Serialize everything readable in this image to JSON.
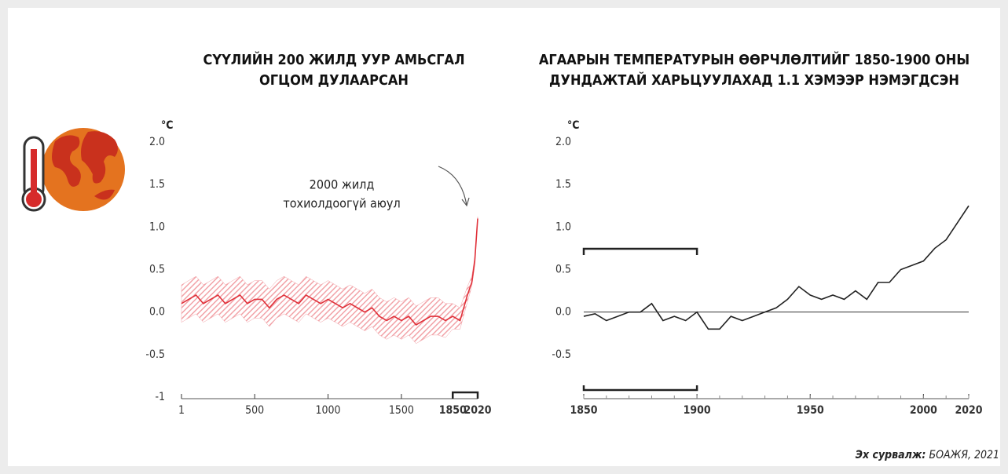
{
  "chart_data": [
    {
      "type": "line",
      "title": [
        "СҮҮЛИЙН 200 ЖИЛД УУР АМЬСГАЛ",
        "ОГЦОМ ДУЛААРСАН"
      ],
      "y_label": "°C",
      "annotation": [
        "2000 жилд",
        "тохиолдоогүй аюул"
      ],
      "x": [
        1,
        50,
        100,
        150,
        200,
        250,
        300,
        350,
        400,
        450,
        500,
        550,
        600,
        650,
        700,
        750,
        800,
        850,
        900,
        950,
        1000,
        1050,
        1100,
        1150,
        1200,
        1250,
        1300,
        1350,
        1400,
        1450,
        1500,
        1550,
        1600,
        1650,
        1700,
        1750,
        1800,
        1850,
        1900,
        1950,
        1980,
        2000,
        2010,
        2020
      ],
      "values": [
        0.1,
        0.15,
        0.2,
        0.1,
        0.15,
        0.2,
        0.1,
        0.15,
        0.2,
        0.1,
        0.15,
        0.15,
        0.05,
        0.15,
        0.2,
        0.15,
        0.1,
        0.2,
        0.15,
        0.1,
        0.15,
        0.1,
        0.05,
        0.1,
        0.05,
        0,
        0.05,
        -0.05,
        -0.1,
        -0.05,
        -0.1,
        -0.05,
        -0.15,
        -0.1,
        -0.05,
        -0.05,
        -0.1,
        -0.05,
        -0.1,
        0.2,
        0.35,
        0.6,
        0.85,
        1.1
      ],
      "band_low": [
        -0.12,
        -0.07,
        -0.02,
        -0.12,
        -0.07,
        -0.02,
        -0.12,
        -0.07,
        -0.02,
        -0.12,
        -0.07,
        -0.07,
        -0.17,
        -0.07,
        -0.02,
        -0.07,
        -0.12,
        -0.02,
        -0.07,
        -0.12,
        -0.07,
        -0.12,
        -0.17,
        -0.12,
        -0.17,
        -0.22,
        -0.17,
        -0.27,
        -0.32,
        -0.27,
        -0.32,
        -0.27,
        -0.37,
        -0.32,
        -0.27,
        -0.27,
        -0.3,
        -0.2,
        -0.2,
        0.12,
        0.3,
        0.55,
        0.82,
        1.08
      ],
      "band_high": [
        0.32,
        0.37,
        0.42,
        0.32,
        0.37,
        0.42,
        0.32,
        0.37,
        0.42,
        0.32,
        0.37,
        0.37,
        0.27,
        0.37,
        0.42,
        0.37,
        0.32,
        0.42,
        0.37,
        0.32,
        0.37,
        0.32,
        0.27,
        0.32,
        0.27,
        0.22,
        0.27,
        0.17,
        0.12,
        0.17,
        0.12,
        0.17,
        0.07,
        0.12,
        0.17,
        0.17,
        0.1,
        0.1,
        0.05,
        0.3,
        0.42,
        0.65,
        0.88,
        1.12
      ],
      "color": "#e0313a",
      "band_color": "#f2a3a8",
      "xlim": [
        1,
        2020
      ],
      "xticks": [
        1,
        500,
        1000,
        1500,
        1850,
        2020
      ],
      "highlight_range": [
        1850,
        2020
      ],
      "ylim": [
        -1,
        2
      ],
      "yticks": [
        {
          "value": 2,
          "label": "2.0"
        },
        1.5,
        {
          "value": 1,
          "label": "1.0"
        },
        0.5,
        {
          "value": 0,
          "label": "0.0"
        },
        -0.5,
        -1
      ]
    },
    {
      "type": "line",
      "title": [
        "АГААРЫН ТЕМПЕРАТУРЫН ӨӨРЧЛӨЛТИЙГ 1850-1900 ОНЫ",
        "ДУНДАЖТАЙ ХАРЬЦУУЛАХАД 1.1 ХЭМЭЭР НЭМЭГДСЭН"
      ],
      "y_label": "°C",
      "x": [
        1850,
        1855,
        1860,
        1865,
        1870,
        1875,
        1880,
        1885,
        1890,
        1895,
        1900,
        1905,
        1910,
        1915,
        1920,
        1925,
        1930,
        1935,
        1940,
        1945,
        1950,
        1955,
        1960,
        1965,
        1970,
        1975,
        1980,
        1985,
        1990,
        1995,
        2000,
        2005,
        2010,
        2015,
        2020
      ],
      "values": [
        -0.05,
        -0.02,
        -0.1,
        -0.05,
        0,
        0,
        0.1,
        -0.1,
        -0.05,
        -0.1,
        0,
        -0.2,
        -0.2,
        -0.05,
        -0.1,
        -0.05,
        0,
        0.05,
        0.15,
        0.3,
        0.2,
        0.15,
        0.2,
        0.15,
        0.25,
        0.15,
        0.35,
        0.35,
        0.5,
        0.55,
        0.6,
        0.75,
        0.85,
        1.05,
        1.25
      ],
      "color": "#222222",
      "zero_line": true,
      "xlim": [
        1850,
        2020
      ],
      "xticks": [
        1850,
        1900,
        1950,
        2000,
        2020
      ],
      "reference_period": [
        1850,
        1900
      ],
      "ylim": [
        -1,
        2
      ],
      "yticks": [
        {
          "value": 2,
          "label": "2.0"
        },
        1.5,
        {
          "value": 1,
          "label": "1.0"
        },
        0.5,
        {
          "value": 0,
          "label": "0.0"
        },
        -0.5
      ]
    }
  ],
  "source": {
    "label": "Эх сурвалж:",
    "text": "БОАЖЯ, 2021"
  }
}
